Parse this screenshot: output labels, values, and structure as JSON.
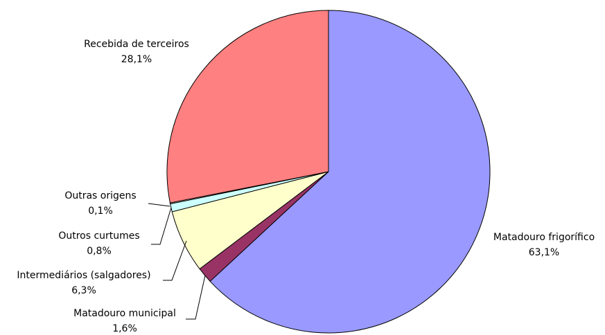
{
  "chart_data": {
    "type": "pie",
    "title": "",
    "start": "12 o'clock",
    "direction": "clockwise",
    "legend": "none",
    "slices": [
      {
        "label": "Matadouro frigorífico",
        "value": 63.1,
        "value_label": "63,1%",
        "color": "#9999FF"
      },
      {
        "label": "Matadouro municipal",
        "value": 1.6,
        "value_label": "1,6%",
        "color": "#993366"
      },
      {
        "label": "Intermediários (salgadores)",
        "value": 6.3,
        "value_label": "6,3%",
        "color": "#FFFFCC"
      },
      {
        "label": "Outros curtumes",
        "value": 0.8,
        "value_label": "0,8%",
        "color": "#CCFFFF"
      },
      {
        "label": "Outras origens",
        "value": 0.1,
        "value_label": "0,1%",
        "color": "#FFFFFF"
      },
      {
        "label": "Recebida de terceiros",
        "value": 28.1,
        "value_label": "28,1%",
        "color": "#FF8080"
      }
    ]
  }
}
